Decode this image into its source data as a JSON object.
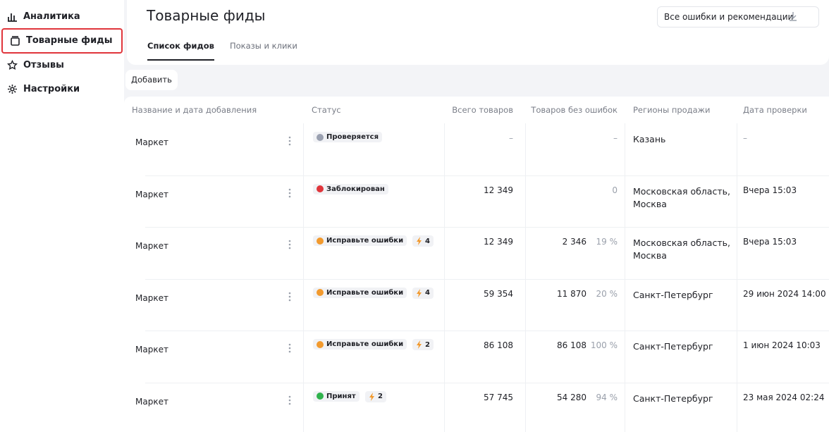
{
  "sidebar": {
    "items": [
      "Аналитика",
      "Товарные фиды",
      "Отзывы",
      "Настройки"
    ],
    "active": 1
  },
  "header": {
    "title": "Товарные фиды",
    "export_button": "Все ошибки и рекомендации"
  },
  "tabs": {
    "items": [
      "Список фидов",
      "Показы и клики"
    ],
    "active": 0
  },
  "add_button": "Добавить",
  "table": {
    "columns": [
      "Название и дата добавления",
      "Статус",
      "Всего товаров",
      "Товаров без ошибок",
      "Регионы продажи",
      "Дата проверки"
    ],
    "rows": [
      {
        "name": "Маркет",
        "status": "Проверяется",
        "status_color": "#9aa0b0",
        "warnings": null,
        "total": "–",
        "ok": "–",
        "ok_pct": null,
        "region": "Казань",
        "checked": "–"
      },
      {
        "name": "Маркет",
        "status": "Заблокирован",
        "status_color": "#e0353b",
        "warnings": null,
        "total": "12 349",
        "ok": "0",
        "ok_pct": null,
        "region": "Московская область, Москва",
        "checked": "Вчера 15:03"
      },
      {
        "name": "Маркет",
        "status": "Исправьте ошибки",
        "status_color": "#f29a2e",
        "warnings": "4",
        "total": "12 349",
        "ok": "2 346",
        "ok_pct": "19 %",
        "region": "Московская область, Москва",
        "checked": "Вчера 15:03"
      },
      {
        "name": "Маркет",
        "status": "Исправьте ошибки",
        "status_color": "#f29a2e",
        "warnings": "4",
        "total": "59 354",
        "ok": "11 870",
        "ok_pct": "20 %",
        "region": "Санкт-Петербург",
        "checked": "29 июн 2024 14:00"
      },
      {
        "name": "Маркет",
        "status": "Исправьте ошибки",
        "status_color": "#f29a2e",
        "warnings": "2",
        "total": "86 108",
        "ok": "86 108",
        "ok_pct": "100 %",
        "region": "Санкт-Петербург",
        "checked": "1 июн 2024 10:03"
      },
      {
        "name": "Маркет",
        "status": "Принят",
        "status_color": "#2fb24c",
        "warnings": "2",
        "total": "57 745",
        "ok": "54 280",
        "ok_pct": "94 %",
        "region": "Санкт-Петербург",
        "checked": "23 мая 2024 02:24"
      }
    ]
  }
}
